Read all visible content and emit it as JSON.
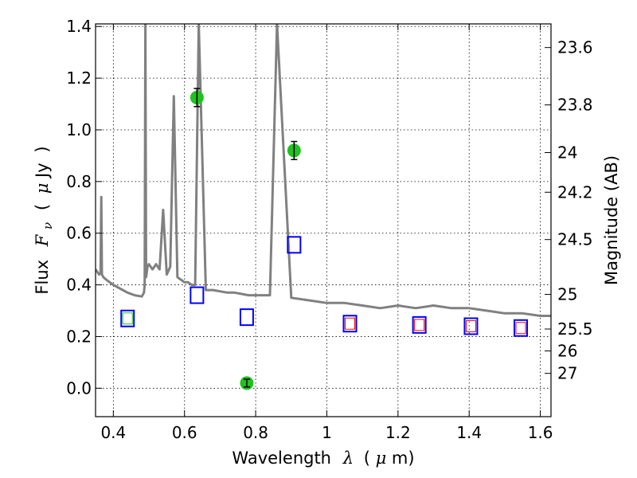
{
  "chart_data": {
    "type": "scatter",
    "title": "",
    "xlabel_parts": [
      "Wavelength",
      "λ",
      "(",
      "μ",
      "m)"
    ],
    "ylabel_parts": [
      "Flux",
      "F",
      "ν",
      "(",
      "μ",
      "Jy",
      ")"
    ],
    "y2label": "Magnitude (AB)",
    "xlim": [
      0.35,
      1.63
    ],
    "ylim": [
      -0.11,
      1.41
    ],
    "grid": true,
    "x_ticks": [
      {
        "value": 0.4,
        "label": "0.4"
      },
      {
        "value": 0.6,
        "label": "0.6"
      },
      {
        "value": 0.8,
        "label": "0.8"
      },
      {
        "value": 1.0,
        "label": "1"
      },
      {
        "value": 1.2,
        "label": "1.2"
      },
      {
        "value": 1.4,
        "label": "1.4"
      },
      {
        "value": 1.6,
        "label": "1.6"
      }
    ],
    "y_ticks": [
      {
        "value": 0.0,
        "label": "0.0"
      },
      {
        "value": 0.2,
        "label": "0.2"
      },
      {
        "value": 0.4,
        "label": "0.4"
      },
      {
        "value": 0.6,
        "label": "0.6"
      },
      {
        "value": 0.8,
        "label": "0.8"
      },
      {
        "value": 1.0,
        "label": "1.0"
      },
      {
        "value": 1.2,
        "label": "1.2"
      },
      {
        "value": 1.4,
        "label": "1.4"
      }
    ],
    "y2_ticks": [
      {
        "flux": 1.3185,
        "label": "23.6"
      },
      {
        "flux": 1.0965,
        "label": "23.8"
      },
      {
        "flux": 0.912,
        "label": "24"
      },
      {
        "flux": 0.7586,
        "label": "24.2"
      },
      {
        "flux": 0.5754,
        "label": "24.5"
      },
      {
        "flux": 0.3631,
        "label": "25"
      },
      {
        "flux": 0.2291,
        "label": "25.5"
      },
      {
        "flux": 0.1445,
        "label": "26"
      },
      {
        "flux": 0.0575,
        "label": "27"
      }
    ],
    "colors": {
      "template": "#808080",
      "observed": "#1fc21f",
      "model_outer": "#0000ff",
      "model_inner_green": "#1fc21f",
      "model_inner_red": "#ff0000"
    },
    "series": [
      {
        "type": "line",
        "x": [
          0.35,
          0.36,
          0.364,
          0.366,
          0.368,
          0.372,
          0.38,
          0.4,
          0.42,
          0.44,
          0.46,
          0.48,
          0.486,
          0.488,
          0.49,
          0.492,
          0.494,
          0.496,
          0.5,
          0.51,
          0.52,
          0.53,
          0.54,
          0.55,
          0.56,
          0.57,
          0.58,
          0.59,
          0.6,
          0.61,
          0.62,
          0.63,
          0.64,
          0.66,
          0.68,
          0.7,
          0.72,
          0.74,
          0.76,
          0.78,
          0.8,
          0.82,
          0.84,
          0.86,
          0.9,
          0.95,
          1.0,
          1.05,
          1.1,
          1.15,
          1.2,
          1.25,
          1.3,
          1.35,
          1.4,
          1.45,
          1.5,
          1.55,
          1.6,
          1.63
        ],
        "y": [
          0.46,
          0.44,
          0.445,
          0.74,
          0.44,
          0.43,
          0.42,
          0.4,
          0.385,
          0.37,
          0.36,
          0.355,
          0.37,
          0.4,
          1.41,
          0.43,
          0.45,
          0.47,
          0.48,
          0.46,
          0.48,
          0.46,
          0.69,
          0.44,
          0.47,
          1.13,
          0.43,
          0.42,
          0.41,
          0.41,
          0.4,
          0.4,
          1.41,
          0.38,
          0.38,
          0.375,
          0.37,
          0.37,
          0.365,
          0.36,
          0.36,
          0.36,
          0.36,
          1.41,
          0.35,
          0.34,
          0.33,
          0.33,
          0.32,
          0.31,
          0.32,
          0.31,
          0.32,
          0.31,
          0.31,
          0.3,
          0.29,
          0.29,
          0.28,
          0.28
        ]
      },
      {
        "type": "scatter",
        "x": [
          0.635,
          0.775,
          0.908
        ],
        "y": [
          1.125,
          0.02,
          0.92
        ],
        "yerr": [
          0.035,
          0.015,
          0.035
        ]
      },
      {
        "type": "scatter",
        "x": [
          0.44,
          0.635,
          0.775,
          0.908,
          1.065,
          1.26,
          1.405,
          1.545
        ],
        "y": [
          0.27,
          0.36,
          0.275,
          0.555,
          0.25,
          0.245,
          0.24,
          0.233
        ],
        "inner": [
          "green",
          null,
          null,
          null,
          "red",
          "red",
          "red",
          "red"
        ]
      }
    ]
  }
}
